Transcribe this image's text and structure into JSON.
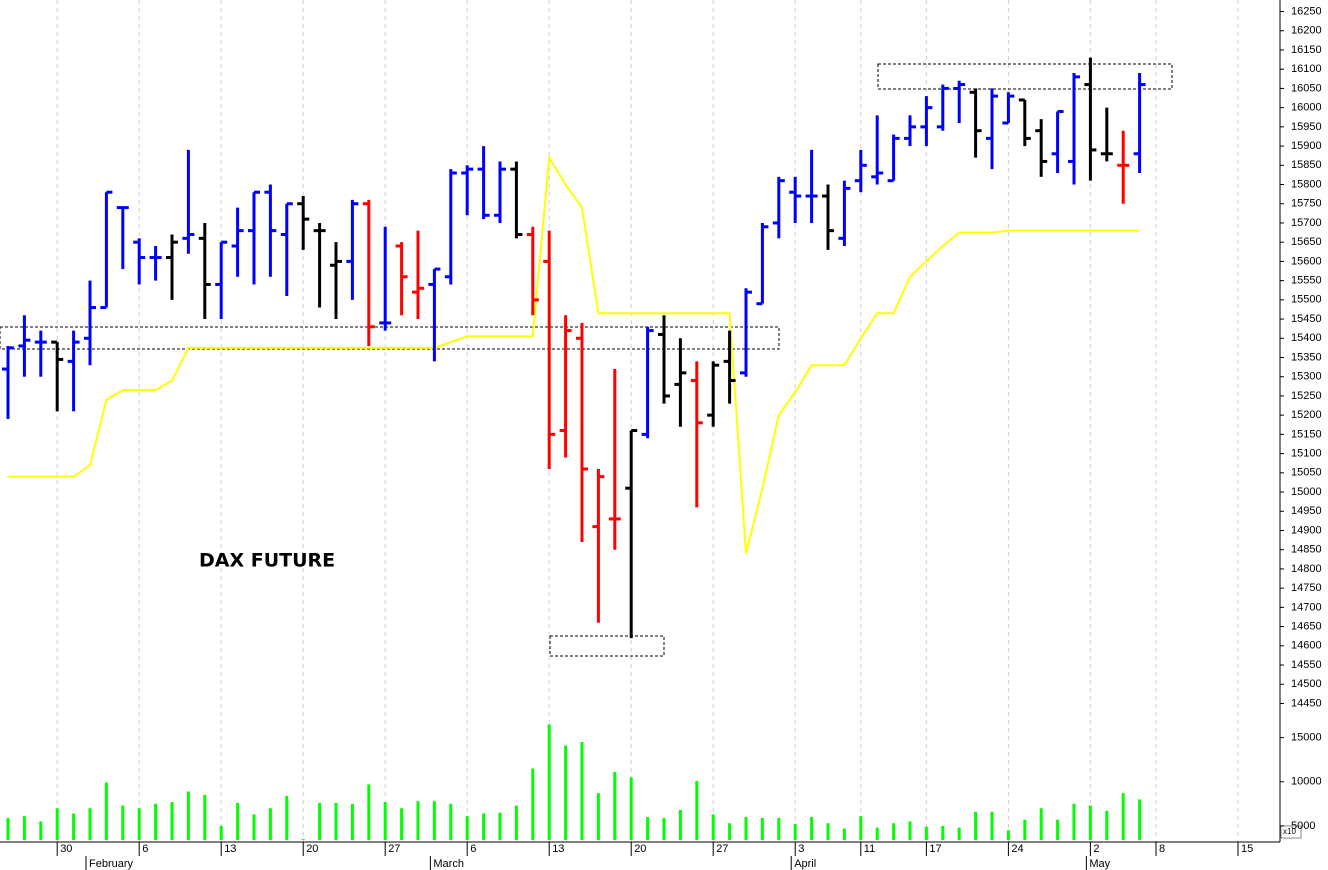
{
  "chart_data": {
    "type": "ohlc",
    "title": "DAX FUTURE",
    "categories": [
      null,
      null,
      null,
      "30",
      null,
      null,
      null,
      null,
      "6",
      null,
      null,
      null,
      null,
      "13",
      null,
      null,
      null,
      null,
      "20",
      null,
      null,
      null,
      null,
      "27",
      null,
      null,
      null,
      null,
      "6",
      null,
      null,
      null,
      null,
      "13",
      null,
      null,
      null,
      null,
      "20",
      null,
      null,
      null,
      null,
      "27",
      null,
      null,
      null,
      null,
      "3",
      null,
      null,
      null,
      "11",
      null,
      null,
      null,
      "17",
      null,
      null,
      null,
      null,
      "24",
      null,
      null,
      null,
      null,
      "2",
      null,
      null,
      null,
      "8",
      null,
      null,
      null,
      null,
      "15",
      null,
      null
    ],
    "month_labels": [
      null,
      null,
      null,
      null,
      null,
      "February",
      null,
      null,
      null,
      null,
      null,
      null,
      null,
      null,
      null,
      null,
      null,
      null,
      null,
      null,
      null,
      null,
      null,
      null,
      null,
      null,
      "March",
      null,
      null,
      null,
      null,
      null,
      null,
      null,
      null,
      null,
      null,
      null,
      null,
      null,
      null,
      null,
      null,
      null,
      null,
      null,
      null,
      null,
      "April",
      null,
      null,
      null,
      null,
      null,
      null,
      null,
      null,
      null,
      null,
      null,
      null,
      null,
      null,
      null,
      null,
      null,
      "May",
      null,
      null,
      null,
      null,
      null,
      null,
      null,
      null,
      null,
      null,
      null
    ],
    "open": [
      15320,
      15380,
      15390,
      15390,
      15340,
      15400,
      15480,
      15740,
      15650,
      15610,
      15610,
      15660,
      15660,
      15540,
      15640,
      15680,
      15780,
      15670,
      15750,
      15680,
      15590,
      15600,
      15750,
      15440,
      15640,
      15520,
      15540,
      15560,
      15830,
      15840,
      15720,
      15840,
      15670,
      15600,
      15160,
      15400,
      14910,
      14930,
      15010,
      15150,
      15410,
      15280,
      15290,
      15200,
      15340,
      15310,
      15490,
      15700,
      15780,
      15770,
      15770,
      15660,
      15810,
      15820,
      15810,
      15920,
      15950,
      15950,
      16050,
      16040,
      15920,
      15960,
      16020,
      15940,
      15880,
      15860,
      16060,
      15880,
      15850,
      15880,
      null,
      null,
      null,
      null,
      null,
      null,
      null,
      null
    ],
    "high": [
      15380,
      15460,
      15420,
      15390,
      15420,
      15550,
      15780,
      15740,
      15660,
      15640,
      15670,
      15890,
      15700,
      15650,
      15740,
      15780,
      15800,
      15750,
      15770,
      15700,
      15650,
      15760,
      15760,
      15690,
      15650,
      15680,
      15580,
      15840,
      15850,
      15900,
      15860,
      15860,
      15690,
      15680,
      15460,
      15440,
      15060,
      15320,
      15160,
      15430,
      15460,
      15400,
      15340,
      15340,
      15420,
      15530,
      15700,
      15820,
      15820,
      15890,
      15800,
      15810,
      15890,
      15980,
      15930,
      15980,
      16030,
      16060,
      16070,
      16050,
      16050,
      16040,
      16020,
      15970,
      15990,
      16090,
      16130,
      16000,
      15940,
      16090,
      null,
      null,
      null,
      null,
      null,
      null,
      null,
      null
    ],
    "low": [
      15190,
      15300,
      15300,
      15210,
      15210,
      15330,
      15480,
      15580,
      15540,
      15550,
      15500,
      15620,
      15450,
      15450,
      15560,
      15540,
      15560,
      15510,
      15630,
      15480,
      15450,
      15500,
      15380,
      15420,
      15460,
      15450,
      15340,
      15540,
      15720,
      15710,
      15700,
      15660,
      15460,
      15060,
      15090,
      14870,
      14660,
      14850,
      14620,
      15140,
      15230,
      15170,
      14960,
      15170,
      15230,
      15300,
      15490,
      15660,
      15700,
      15700,
      15630,
      15640,
      15780,
      15800,
      15810,
      15900,
      15900,
      15940,
      15960,
      15870,
      15840,
      15960,
      15900,
      15820,
      15830,
      15800,
      15810,
      15860,
      15750,
      15830,
      null,
      null,
      null,
      null,
      null,
      null,
      null,
      null
    ],
    "close": [
      15375,
      15395,
      15390,
      15345,
      15390,
      15480,
      15780,
      15740,
      15610,
      15610,
      15650,
      15670,
      15540,
      15650,
      15680,
      15780,
      15680,
      15750,
      15710,
      15680,
      15600,
      15750,
      15430,
      15440,
      15560,
      15530,
      15580,
      15830,
      15840,
      15720,
      15840,
      15670,
      15500,
      15150,
      15420,
      15060,
      15040,
      14930,
      15160,
      15420,
      15250,
      15310,
      15180,
      15330,
      15290,
      15520,
      15690,
      15810,
      15770,
      15770,
      15680,
      15790,
      15850,
      15830,
      15920,
      15950,
      16000,
      16050,
      16060,
      15940,
      16030,
      16030,
      15920,
      15860,
      15990,
      16080,
      15890,
      15880,
      15850,
      16060,
      null,
      null,
      null,
      null,
      null,
      null,
      null,
      null
    ],
    "bar_colors": [
      "#0000ff",
      "#0000ff",
      "#0000ff",
      "#000000",
      "#0000ff",
      "#0000ff",
      "#0000ff",
      "#0000ff",
      "#0000ff",
      "#0000ff",
      "#000000",
      "#0000ff",
      "#000000",
      "#0000ff",
      "#0000ff",
      "#0000ff",
      "#0000ff",
      "#0000ff",
      "#000000",
      "#000000",
      "#000000",
      "#0000ff",
      "#ff0000",
      "#0000ff",
      "#ff0000",
      "#ff0000",
      "#0000ff",
      "#0000ff",
      "#0000ff",
      "#0000ff",
      "#0000ff",
      "#000000",
      "#ff0000",
      "#ff0000",
      "#ff0000",
      "#ff0000",
      "#ff0000",
      "#ff0000",
      "#000000",
      "#0000ff",
      "#000000",
      "#000000",
      "#ff0000",
      "#000000",
      "#000000",
      "#0000ff",
      "#0000ff",
      "#0000ff",
      "#0000ff",
      "#0000ff",
      "#000000",
      "#0000ff",
      "#0000ff",
      "#0000ff",
      "#0000ff",
      "#0000ff",
      "#0000ff",
      "#0000ff",
      "#0000ff",
      "#000000",
      "#0000ff",
      "#0000ff",
      "#000000",
      "#000000",
      "#0000ff",
      "#0000ff",
      "#000000",
      "#000000",
      "#ff0000",
      "#0000ff",
      null,
      null,
      null,
      null,
      null,
      null,
      null,
      null
    ],
    "ylim": [
      14420,
      16280
    ],
    "yticks": [
      14450,
      14500,
      14550,
      14600,
      14650,
      14700,
      14750,
      14800,
      14850,
      14900,
      14950,
      15000,
      15050,
      15100,
      15150,
      15200,
      15250,
      15300,
      15350,
      15400,
      15450,
      15500,
      15550,
      15600,
      15650,
      15700,
      15750,
      15800,
      15850,
      15900,
      15950,
      16000,
      16050,
      16100,
      16150,
      16200,
      16250
    ],
    "grid": "x",
    "line": {
      "color": "#ffff00",
      "values": [
        15040,
        15040,
        15040,
        15040,
        15040,
        15070,
        15240,
        15265,
        15265,
        15265,
        15290,
        15375,
        15375,
        15375,
        15375,
        15375,
        15375,
        15375,
        15375,
        15375,
        15375,
        15375,
        15375,
        15375,
        15375,
        15375,
        15375,
        15390,
        15405,
        15405,
        15405,
        15405,
        15405,
        15870,
        15800,
        15740,
        15465,
        15465,
        15465,
        15465,
        15465,
        15465,
        15465,
        15465,
        15465,
        14840,
        15010,
        15200,
        15260,
        15330,
        15330,
        15330,
        15400,
        15465,
        15465,
        15560,
        15600,
        15640,
        15675,
        15675,
        15675,
        15680,
        15680,
        15680,
        15680,
        15680,
        15680,
        15680,
        15680,
        15680,
        null,
        null,
        null,
        null,
        null,
        null,
        null,
        null
      ]
    },
    "volume": {
      "color": "#00ff00",
      "unit_label": "x10",
      "ylim": [
        3400,
        17000
      ],
      "yticks": [
        5000,
        10000,
        15000
      ],
      "values": [
        5900,
        6100,
        5500,
        7000,
        6400,
        7000,
        9900,
        7300,
        7000,
        7500,
        7700,
        8900,
        8500,
        5000,
        7600,
        6300,
        7000,
        8400,
        3500,
        7600,
        7600,
        7500,
        9700,
        7700,
        7000,
        7800,
        7800,
        7500,
        6100,
        6400,
        6500,
        7300,
        11500,
        16500,
        14100,
        14500,
        8700,
        11100,
        10500,
        6000,
        5900,
        6800,
        10100,
        6300,
        5300,
        6000,
        5900,
        5900,
        5200,
        6000,
        5300,
        4700,
        6100,
        4800,
        5300,
        5500,
        4900,
        5000,
        4800,
        6600,
        6600,
        4500,
        5700,
        7000,
        5700,
        7500,
        7300,
        6700,
        8700,
        8000,
        null,
        null,
        null,
        null,
        null,
        null,
        null,
        null
      ]
    }
  }
}
